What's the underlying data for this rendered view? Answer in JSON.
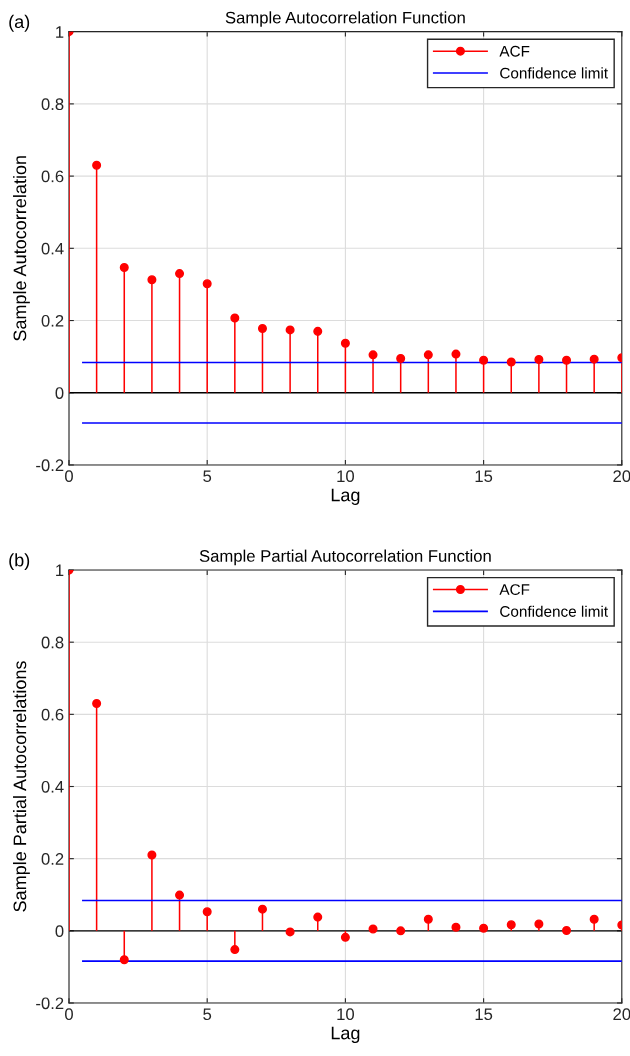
{
  "chart_data": [
    {
      "type": "lollipop",
      "title": "Sample Autocorrelation Function",
      "xlabel": "Lag",
      "ylabel": "Sample Autocorrelation",
      "annotations": [
        "(a)"
      ],
      "xlim": [
        0,
        20
      ],
      "xticks": [
        0,
        5,
        10,
        15,
        20
      ],
      "ylim": [
        -0.2,
        1
      ],
      "yticks": [
        -0.2,
        0,
        0.2,
        0.4,
        0.6,
        0.8,
        1
      ],
      "grid": true,
      "legend": "top right",
      "series": [
        {
          "name": "ACF",
          "marker": "circle",
          "color": "#ff0000",
          "x": [
            0,
            1,
            2,
            3,
            4,
            5,
            6,
            7,
            8,
            9,
            10,
            11,
            12,
            13,
            14,
            15,
            16,
            17,
            18,
            19,
            20
          ],
          "values": [
            1,
            0.63,
            0.347,
            0.313,
            0.33,
            0.302,
            0.207,
            0.178,
            0.174,
            0.17,
            0.137,
            0.105,
            0.095,
            0.105,
            0.107,
            0.09,
            0.085,
            0.092,
            0.09,
            0.093,
            0.097
          ]
        },
        {
          "name": "Confidence limit",
          "type": "line",
          "color": "#0000ff",
          "x": [
            0.5,
            20
          ],
          "values": [
            0.084,
            0.084
          ]
        },
        {
          "type": "line",
          "color": "#0000ff",
          "x": [
            0.5,
            20
          ],
          "values": [
            -0.084,
            -0.084
          ]
        }
      ]
    },
    {
      "type": "lollipop",
      "title": "Sample Partial Autocorrelation Function",
      "xlabel": "Lag",
      "ylabel": "Sample Partial Autocorrelations",
      "annotations": [
        "(b)"
      ],
      "xlim": [
        0,
        20
      ],
      "xticks": [
        0,
        5,
        10,
        15,
        20
      ],
      "ylim": [
        -0.2,
        1
      ],
      "yticks": [
        -0.2,
        0,
        0.2,
        0.4,
        0.6,
        0.8,
        1
      ],
      "grid": true,
      "legend": "top right",
      "series": [
        {
          "name": "ACF",
          "marker": "circle",
          "color": "#ff0000",
          "x": [
            0,
            1,
            2,
            3,
            4,
            5,
            6,
            7,
            8,
            9,
            10,
            11,
            12,
            13,
            14,
            15,
            16,
            17,
            18,
            19,
            20
          ],
          "values": [
            1,
            0.63,
            -0.08,
            0.21,
            0.099,
            0.053,
            -0.052,
            0.06,
            -0.003,
            0.038,
            -0.018,
            0.005,
            0,
            0.032,
            0.01,
            0.007,
            0.017,
            0.019,
            0.001,
            0.032,
            0.016
          ]
        },
        {
          "name": "Confidence limit",
          "type": "line",
          "color": "#0000ff",
          "x": [
            0.5,
            20
          ],
          "values": [
            0.084,
            0.084
          ]
        },
        {
          "type": "line",
          "color": "#0000ff",
          "x": [
            0.5,
            20
          ],
          "values": [
            -0.084,
            -0.084
          ]
        }
      ]
    }
  ]
}
